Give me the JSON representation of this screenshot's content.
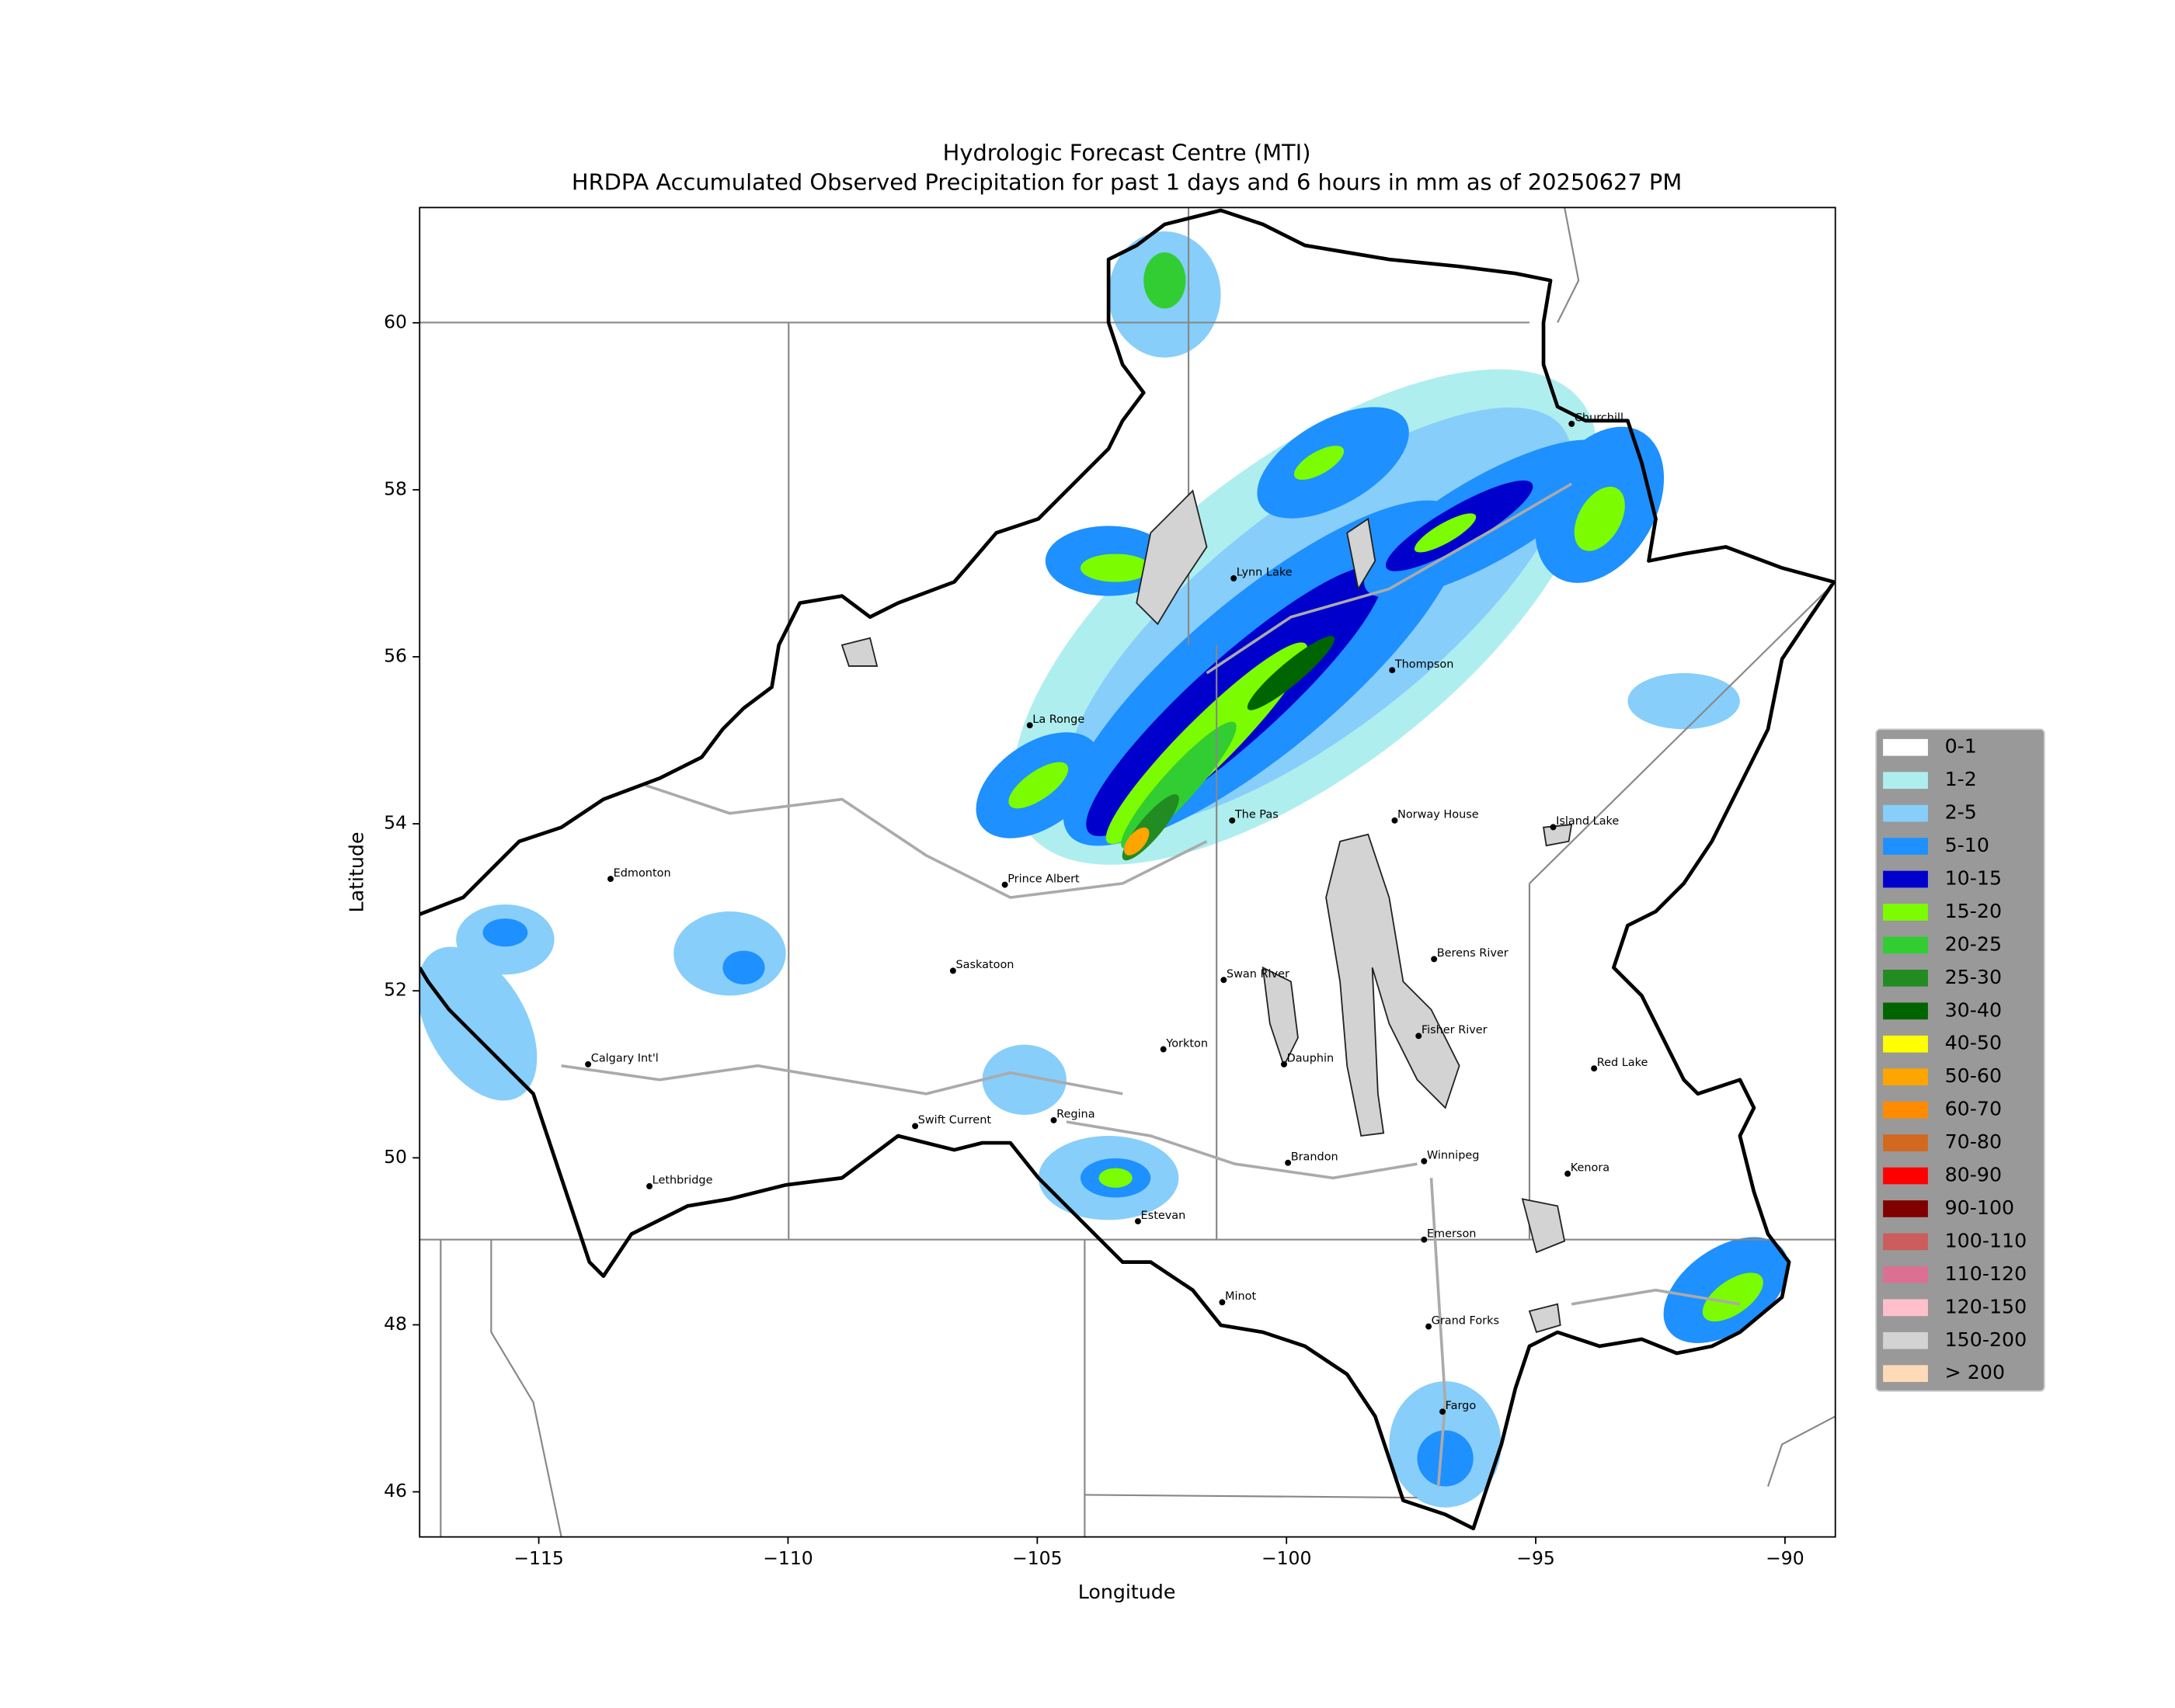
{
  "chart_data": {
    "type": "map",
    "title": "Hydrologic Forecast Centre (MTI)",
    "subtitle": "HRDPA Accumulated Observed Precipitation for past 1 days and 6 hours in mm as of 20250627 PM",
    "x_label": "Longitude",
    "y_label": "Latitude",
    "xlim": [
      -117.39,
      -88.99
    ],
    "ylim": [
      45.46,
      61.38
    ],
    "xticks": [
      {
        "value": -115,
        "label": "−115"
      },
      {
        "value": -110,
        "label": "−110"
      },
      {
        "value": -105,
        "label": "−105"
      },
      {
        "value": -100,
        "label": "−100"
      },
      {
        "value": -95,
        "label": "−95"
      },
      {
        "value": -90,
        "label": "−90"
      }
    ],
    "yticks": [
      46,
      48,
      50,
      52,
      54,
      56,
      58,
      60
    ],
    "cities": [
      {
        "name": "Churchill",
        "lon": -94.28,
        "lat": 58.79
      },
      {
        "name": "Lynn Lake",
        "lon": -101.06,
        "lat": 56.94
      },
      {
        "name": "Thompson",
        "lon": -97.88,
        "lat": 55.84
      },
      {
        "name": "La Ronge",
        "lon": -105.15,
        "lat": 55.18
      },
      {
        "name": "Norway House",
        "lon": -97.83,
        "lat": 54.04
      },
      {
        "name": "Island Lake",
        "lon": -94.65,
        "lat": 53.96
      },
      {
        "name": "Edmonton",
        "lon": -113.56,
        "lat": 53.34
      },
      {
        "name": "Prince Albert",
        "lon": -105.65,
        "lat": 53.27
      },
      {
        "name": "The Pas",
        "lon": -101.09,
        "lat": 54.04
      },
      {
        "name": "Saskatoon",
        "lon": -106.69,
        "lat": 52.24
      },
      {
        "name": "Swan River",
        "lon": -101.26,
        "lat": 52.13
      },
      {
        "name": "Berens River",
        "lon": -97.04,
        "lat": 52.38
      },
      {
        "name": "Yorkton",
        "lon": -102.47,
        "lat": 51.3
      },
      {
        "name": "Dauphin",
        "lon": -100.05,
        "lat": 51.12
      },
      {
        "name": "Fisher River",
        "lon": -97.35,
        "lat": 51.46
      },
      {
        "name": "Calgary Int'l",
        "lon": -114.01,
        "lat": 51.12
      },
      {
        "name": "Red Lake",
        "lon": -93.83,
        "lat": 51.07
      },
      {
        "name": "Regina",
        "lon": -104.67,
        "lat": 50.45
      },
      {
        "name": "Swift Current",
        "lon": -107.45,
        "lat": 50.38
      },
      {
        "name": "Brandon",
        "lon": -99.97,
        "lat": 49.94
      },
      {
        "name": "Winnipeg",
        "lon": -97.24,
        "lat": 49.96
      },
      {
        "name": "Kenora",
        "lon": -94.36,
        "lat": 49.81
      },
      {
        "name": "Lethbridge",
        "lon": -112.78,
        "lat": 49.66
      },
      {
        "name": "Estevan",
        "lon": -102.98,
        "lat": 49.24
      },
      {
        "name": "Emerson",
        "lon": -97.24,
        "lat": 49.02
      },
      {
        "name": "Minot",
        "lon": -101.29,
        "lat": 48.27
      },
      {
        "name": "Grand Forks",
        "lon": -97.15,
        "lat": 47.98
      },
      {
        "name": "Fargo",
        "lon": -96.87,
        "lat": 46.96
      }
    ],
    "legend": {
      "position": "right",
      "items": [
        {
          "label": "0-1",
          "color": "#ffffff"
        },
        {
          "label": "1-2",
          "color": "#afeeee"
        },
        {
          "label": "2-5",
          "color": "#87cefa"
        },
        {
          "label": "5-10",
          "color": "#1e90ff"
        },
        {
          "label": "10-15",
          "color": "#0000cd"
        },
        {
          "label": "15-20",
          "color": "#7cfc00"
        },
        {
          "label": "20-25",
          "color": "#32cd32"
        },
        {
          "label": "25-30",
          "color": "#228b22"
        },
        {
          "label": "30-40",
          "color": "#006400"
        },
        {
          "label": "40-50",
          "color": "#ffff00"
        },
        {
          "label": "50-60",
          "color": "#ffa500"
        },
        {
          "label": "60-70",
          "color": "#ff8c00"
        },
        {
          "label": "70-80",
          "color": "#d2691e"
        },
        {
          "label": "80-90",
          "color": "#ff0000"
        },
        {
          "label": "90-100",
          "color": "#800000"
        },
        {
          "label": "100-110",
          "color": "#cd5c5c"
        },
        {
          "label": "110-120",
          "color": "#db7093"
        },
        {
          "label": "120-150",
          "color": "#ffc0cb"
        },
        {
          "label": "150-200",
          "color": "#d3d3d3"
        },
        {
          "label": "> 200",
          "color": "#ffdab9"
        }
      ]
    }
  }
}
